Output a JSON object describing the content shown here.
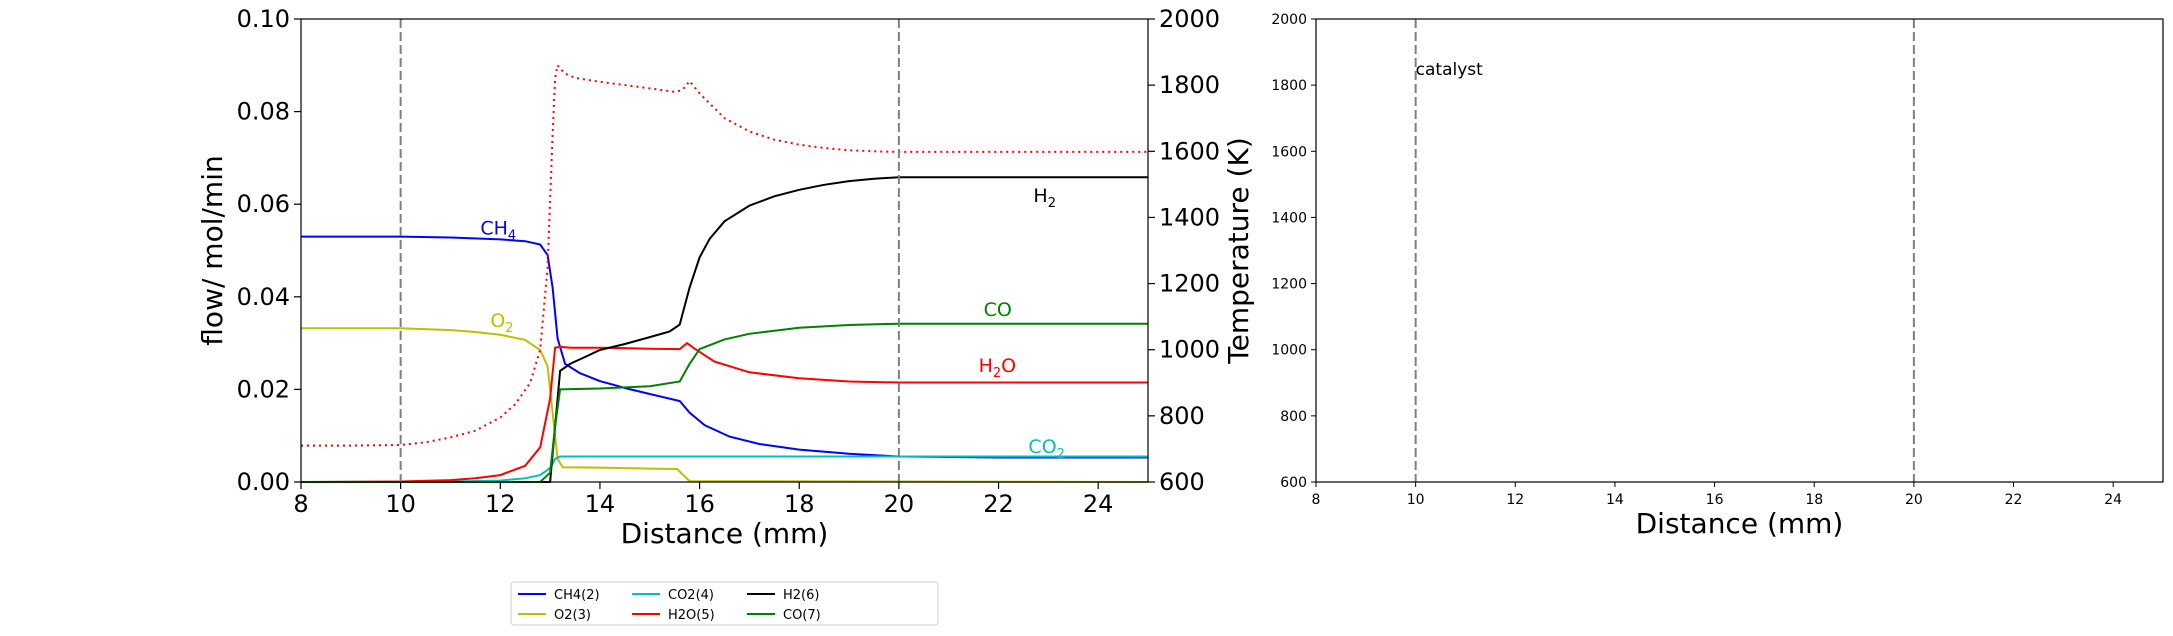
{
  "chart_data": [
    {
      "type": "line",
      "xlabel": "Distance (mm)",
      "ylabel": "flow/ mol/min",
      "ylabel_right": "Temperature (K)",
      "xlim": [
        8,
        25
      ],
      "ylim": [
        0,
        0.1
      ],
      "ylim_right": [
        600,
        2000
      ],
      "x_ticks": [
        "8",
        "10",
        "12",
        "14",
        "16",
        "18",
        "20",
        "22",
        "24"
      ],
      "y_ticks": [
        "0.00",
        "0.02",
        "0.04",
        "0.06",
        "0.08",
        "0.10"
      ],
      "y_ticks_right": [
        "600",
        "800",
        "1000",
        "1200",
        "1400",
        "1600",
        "1800",
        "2000"
      ],
      "vlines": [
        10,
        20
      ],
      "grid": false,
      "legend_placement": "below",
      "series": [
        {
          "name": "CH4(2)",
          "label": "CH",
          "sub": "4",
          "label_x": 11.6,
          "label_y": 0.0535,
          "color": "#0000ff",
          "x": [
            8,
            10,
            11,
            12,
            12.5,
            12.8,
            12.95,
            13.05,
            13.15,
            13.3,
            13.6,
            14,
            14.5,
            15,
            15.6,
            15.8,
            16.1,
            16.6,
            17.2,
            18,
            19,
            20,
            22,
            25
          ],
          "y": [
            0.053,
            0.053,
            0.0528,
            0.0524,
            0.052,
            0.0513,
            0.049,
            0.042,
            0.031,
            0.0255,
            0.0235,
            0.0218,
            0.0203,
            0.019,
            0.0175,
            0.015,
            0.0123,
            0.0098,
            0.0082,
            0.007,
            0.0061,
            0.0055,
            0.0053,
            0.0053
          ]
        },
        {
          "name": "O2(3)",
          "label": "O",
          "sub": "2",
          "label_x": 11.8,
          "label_y": 0.0335,
          "color": "#bfbf00",
          "x": [
            8,
            10,
            11,
            11.5,
            12,
            12.5,
            12.8,
            12.95,
            13.05,
            13.15,
            13.25,
            14,
            15,
            15.55,
            15.7,
            15.8,
            25
          ],
          "y": [
            0.0332,
            0.0332,
            0.0328,
            0.0324,
            0.0318,
            0.0307,
            0.0285,
            0.025,
            0.015,
            0.005,
            0.0032,
            0.0031,
            0.0029,
            0.0028,
            0.0012,
            0.0002,
            0.0
          ]
        },
        {
          "name": "CO2(4)",
          "label": "CO",
          "sub": "2",
          "label_x": 22.6,
          "label_y": 0.0063,
          "color": "#00bfbf",
          "x": [
            8,
            11,
            12,
            12.5,
            12.8,
            13,
            13.1,
            13.2,
            14,
            16,
            18,
            20,
            25
          ],
          "y": [
            0.0,
            0.0001,
            0.0003,
            0.0008,
            0.0015,
            0.003,
            0.005,
            0.0055,
            0.0055,
            0.0055,
            0.0055,
            0.0055,
            0.0055
          ]
        },
        {
          "name": "H2O(5)",
          "label": "H",
          "sub": "2",
          "label_after": "O",
          "label_x": 21.6,
          "label_y": 0.0238,
          "color": "#ff0000",
          "x": [
            8,
            10,
            11,
            11.5,
            12,
            12.5,
            12.8,
            13,
            13.1,
            13.2,
            13.4,
            14,
            15,
            15.6,
            15.75,
            15.9,
            16.3,
            17,
            18,
            19,
            20,
            25
          ],
          "y": [
            0.0,
            0.0001,
            0.0004,
            0.0008,
            0.0015,
            0.0035,
            0.0075,
            0.018,
            0.029,
            0.0292,
            0.029,
            0.029,
            0.0288,
            0.0287,
            0.03,
            0.0288,
            0.026,
            0.0237,
            0.0224,
            0.0217,
            0.0215,
            0.0215
          ]
        },
        {
          "name": "H2(6)",
          "label": "H",
          "sub": "2",
          "label_x": 22.7,
          "label_y": 0.0605,
          "color": "#000000",
          "x": [
            8,
            12.8,
            13,
            13.1,
            13.2,
            13.4,
            13.7,
            14,
            14.5,
            15,
            15.4,
            15.6,
            15.8,
            16,
            16.2,
            16.5,
            17,
            17.5,
            18,
            18.5,
            19,
            19.5,
            20,
            25
          ],
          "y": [
            0.0,
            0.0,
            0.0,
            0.012,
            0.024,
            0.0255,
            0.027,
            0.0285,
            0.0298,
            0.0313,
            0.0325,
            0.034,
            0.042,
            0.0485,
            0.0525,
            0.0563,
            0.0597,
            0.0617,
            0.0631,
            0.0642,
            0.065,
            0.0655,
            0.0658,
            0.0658
          ]
        },
        {
          "name": "CO(7)",
          "label": "CO",
          "sub": "",
          "label_x": 21.7,
          "label_y": 0.0358,
          "color": "#008000",
          "x": [
            8,
            12.8,
            13,
            13.1,
            13.2,
            14,
            15,
            15.6,
            15.8,
            16,
            16.5,
            17,
            18,
            19,
            20,
            25
          ],
          "y": [
            0.0,
            0.0,
            0.002,
            0.012,
            0.02,
            0.0202,
            0.0207,
            0.0217,
            0.0255,
            0.0287,
            0.0308,
            0.032,
            0.0333,
            0.0339,
            0.0342,
            0.0342
          ]
        }
      ],
      "temperature_series": {
        "style": "dotted",
        "color": "#ff0000",
        "x": [
          8,
          9,
          10,
          10.5,
          11,
          11.5,
          12,
          12.3,
          12.6,
          12.8,
          12.95,
          13.05,
          13.1,
          13.15,
          13.2,
          13.3,
          13.5,
          14,
          14.5,
          15,
          15.5,
          15.65,
          15.8,
          16,
          16.5,
          17,
          17.5,
          18,
          18.5,
          19,
          19.5,
          20,
          25
        ],
        "y": [
          710,
          710,
          712,
          720,
          735,
          755,
          795,
          835,
          900,
          1000,
          1250,
          1650,
          1820,
          1860,
          1850,
          1835,
          1822,
          1810,
          1800,
          1790,
          1780,
          1785,
          1812,
          1775,
          1700,
          1660,
          1635,
          1620,
          1610,
          1603,
          1600,
          1598,
          1598
        ]
      },
      "legend": [
        "CH4(2)",
        "O2(3)",
        "CO2(4)",
        "H2O(5)",
        "H2(6)",
        "CO(7)"
      ]
    },
    {
      "type": "line",
      "xlabel": "Distance (mm)",
      "xlim": [
        8,
        25
      ],
      "ylim": [
        600,
        2000
      ],
      "x_ticks": [
        "8",
        "10",
        "12",
        "14",
        "16",
        "18",
        "20",
        "22",
        "24"
      ],
      "y_ticks": [
        "600",
        "800",
        "1000",
        "1200",
        "1400",
        "1600",
        "1800",
        "2000"
      ],
      "vlines": [
        10,
        20
      ],
      "annotations": [
        {
          "text": "catalyst",
          "x": 10,
          "y": 1830
        }
      ],
      "grid": false,
      "series": []
    }
  ]
}
